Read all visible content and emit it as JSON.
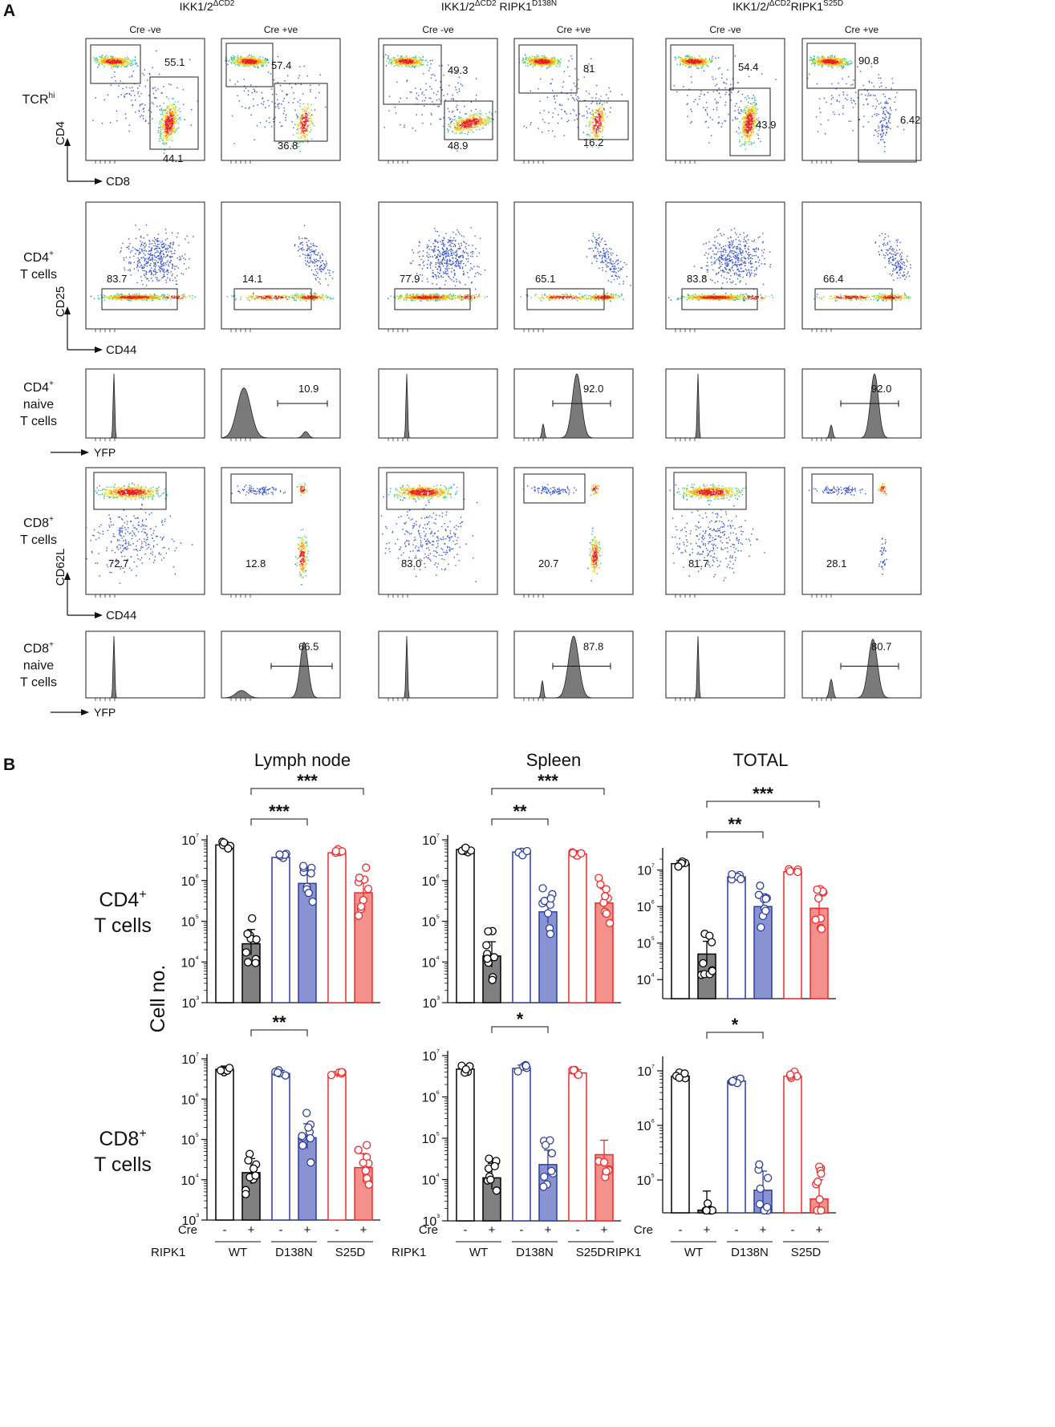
{
  "panel_a": {
    "label": "A",
    "genotypes": [
      {
        "base": "IKK1/2",
        "sup": "ΔCD2",
        "rest": "",
        "rest_sup": ""
      },
      {
        "base": "IKK1/2",
        "sup": "ΔCD2",
        "rest": " RIPK1",
        "rest_sup": "D138N"
      },
      {
        "base": "IKK1/2/",
        "sup": "ΔCD2",
        "rest": "RIPK1",
        "rest_sup": "S25D"
      }
    ],
    "cre_labels": [
      "Cre -ve",
      "Cre +ve"
    ],
    "rows": [
      {
        "label_lines": [
          "TCR"
        ],
        "label_sup": "hi",
        "x_axis": "CD8",
        "y_axis": "CD4",
        "kind": "tcr",
        "values": [
          [
            "55.1",
            "44.1"
          ],
          [
            "57.4",
            "36.8"
          ],
          [
            "49.3",
            "48.9"
          ],
          [
            "81",
            "16.2"
          ],
          [
            "54.4",
            "43.9"
          ],
          [
            "90.8",
            "6.42"
          ]
        ]
      },
      {
        "label_lines": [
          "CD4",
          "T cells"
        ],
        "label_sup": "+",
        "x_axis": "CD44",
        "y_axis": "CD25",
        "kind": "cd25",
        "values": [
          "83.7",
          "14.1",
          "77.9",
          "65.1",
          "83.8",
          "66.4"
        ]
      },
      {
        "label_lines": [
          "CD4",
          "naive",
          "T cells"
        ],
        "label_sup": "+",
        "x_axis": "YFP",
        "kind": "hist",
        "values": [
          "",
          "10.9",
          "",
          "92.0",
          "",
          "92.0"
        ]
      },
      {
        "label_lines": [
          "CD8",
          "T cells"
        ],
        "label_sup": "+",
        "x_axis": "CD44",
        "y_axis": "CD62L",
        "kind": "cd62",
        "values": [
          "72.7",
          "12.8",
          "83.0",
          "20.7",
          "81.7",
          "28.1"
        ]
      },
      {
        "label_lines": [
          "CD8",
          "naive",
          "T cells"
        ],
        "label_sup": "+",
        "x_axis": "YFP",
        "kind": "hist",
        "values": [
          "",
          "66.5",
          "",
          "87.8",
          "",
          "80.7"
        ]
      }
    ]
  },
  "panel_b": {
    "label": "B",
    "titles": [
      "Lymph node",
      "Spleen",
      "TOTAL"
    ],
    "y_axis_title": "Cell no.",
    "row_labels": [
      [
        "CD4",
        "+",
        "T cells"
      ],
      [
        "CD8",
        "+",
        "T cells"
      ]
    ],
    "cre_row_label": "Cre",
    "ripk1_row_label": "RIPK1",
    "cre_ticks": [
      "-",
      "+",
      "-",
      "+",
      "-",
      "+"
    ],
    "ripk1_groups": [
      "WT",
      "D138N",
      "S25D"
    ],
    "colors": {
      "wt": "#000000",
      "wt_fill": "#808080",
      "d138n": "#2c3ea0",
      "d138n_fill": "#8a93d2",
      "s25d": "#ee2a2a",
      "s25d_fill": "#f4918c"
    }
  },
  "chart_data": [
    {
      "type": "bar",
      "title": "Lymph node",
      "row": "CD4+ T cells",
      "ylabel": "Cell no.",
      "yscale": "log",
      "ylim": [
        1000,
        10000000
      ],
      "yticks": [
        "10³",
        "10⁴",
        "10⁵",
        "10⁶",
        "10⁷"
      ],
      "categories": [
        "WT -",
        "WT +",
        "D138N -",
        "D138N +",
        "S25D -",
        "S25D +"
      ],
      "values": [
        7500000,
        28000,
        3700000,
        850000,
        4800000,
        500000
      ],
      "sig": [
        {
          "from": 1,
          "to": 3,
          "label": "***"
        },
        {
          "from": 1,
          "to": 5,
          "label": "***"
        }
      ]
    },
    {
      "type": "bar",
      "title": "Spleen",
      "row": "CD4+ T cells",
      "ylabel": "Cell no.",
      "yscale": "log",
      "ylim": [
        1000,
        10000000
      ],
      "yticks": [
        "10³",
        "10⁴",
        "10⁵",
        "10⁶",
        "10⁷"
      ],
      "categories": [
        "WT -",
        "WT +",
        "D138N -",
        "D138N +",
        "S25D -",
        "S25D +"
      ],
      "values": [
        5800000,
        14000,
        5000000,
        170000,
        4500000,
        280000
      ],
      "sig": [
        {
          "from": 1,
          "to": 3,
          "label": "**"
        },
        {
          "from": 1,
          "to": 5,
          "label": "***"
        }
      ]
    },
    {
      "type": "bar",
      "title": "TOTAL",
      "row": "CD4+ T cells",
      "ylabel": "Cell no.",
      "yscale": "log",
      "ylim": [
        3000,
        30000000
      ],
      "yticks": [
        "10⁴",
        "10⁵",
        "10⁶",
        "10⁷"
      ],
      "categories": [
        "WT -",
        "WT +",
        "D138N -",
        "D138N +",
        "S25D -",
        "S25D +"
      ],
      "values": [
        15000000,
        50000,
        6500000,
        1000000,
        9000000,
        900000
      ],
      "sig": [
        {
          "from": 1,
          "to": 3,
          "label": "**"
        },
        {
          "from": 1,
          "to": 5,
          "label": "***"
        }
      ]
    },
    {
      "type": "bar",
      "title": "Lymph node",
      "row": "CD8+ T cells",
      "ylabel": "Cell no.",
      "yscale": "log",
      "ylim": [
        1000,
        10000000
      ],
      "yticks": [
        "10³",
        "10⁴",
        "10⁵",
        "10⁶",
        "10⁷"
      ],
      "categories": [
        "WT -",
        "WT +",
        "D138N -",
        "D138N +",
        "S25D -",
        "S25D +"
      ],
      "values": [
        5500000,
        15000,
        4300000,
        110000,
        4000000,
        20000
      ],
      "sig": [
        {
          "from": 1,
          "to": 3,
          "label": "**"
        }
      ]
    },
    {
      "type": "bar",
      "title": "Spleen",
      "row": "CD8+ T cells",
      "ylabel": "Cell no.",
      "yscale": "log",
      "ylim": [
        1000,
        10000000
      ],
      "yticks": [
        "10³",
        "10⁴",
        "10⁵",
        "10⁶",
        "10⁷"
      ],
      "categories": [
        "WT -",
        "WT +",
        "D138N -",
        "D138N +",
        "S25D -",
        "S25D +"
      ],
      "values": [
        4700000,
        11000,
        4900000,
        23000,
        3800000,
        40000
      ],
      "sig": [
        {
          "from": 1,
          "to": 3,
          "label": "*"
        }
      ]
    },
    {
      "type": "bar",
      "title": "TOTAL",
      "row": "CD8+ T cells",
      "ylabel": "Cell no.",
      "yscale": "log",
      "ylim": [
        25000,
        15000000
      ],
      "yticks": [
        "10⁵",
        "10⁶",
        "10⁷"
      ],
      "categories": [
        "WT -",
        "WT +",
        "D138N -",
        "D138N +",
        "S25D -",
        "S25D +"
      ],
      "values": [
        8000000,
        28000,
        6500000,
        65000,
        8000000,
        45000
      ],
      "sig": [
        {
          "from": 1,
          "to": 3,
          "label": "*"
        }
      ]
    }
  ]
}
